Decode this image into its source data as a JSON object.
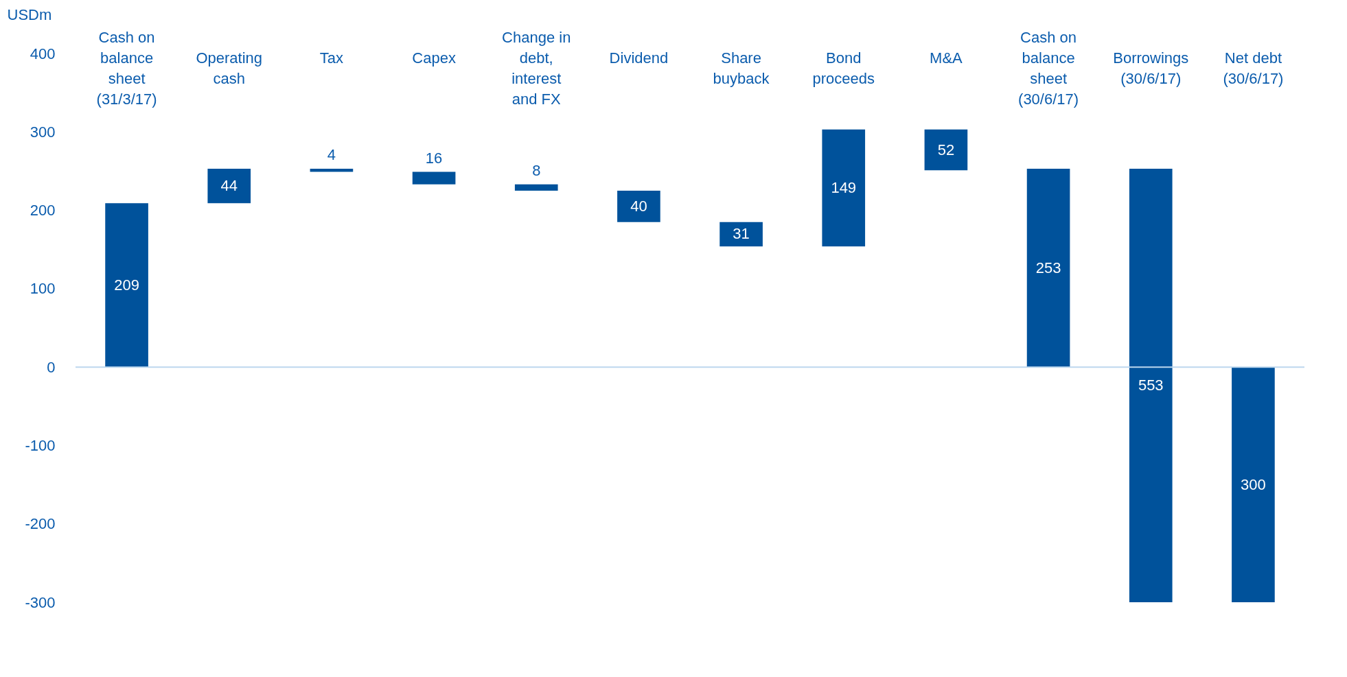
{
  "chart_data": {
    "type": "bar",
    "ylabel": "USDm",
    "categories": [
      "Cash on balance sheet (31/3/17)",
      "Operating cash",
      "Tax",
      "Capex",
      "Change in debt, interest and FX",
      "Dividend",
      "Share buyback",
      "Bond proceeds",
      "M&A",
      "Cash on balance sheet (30/6/17)",
      "Borrowings (30/6/17)",
      "Net debt (30/6/17)"
    ],
    "values": [
      209,
      44,
      -4,
      -16,
      -8,
      -40,
      -31,
      149,
      -52,
      253,
      -553,
      -300
    ],
    "base": [
      0,
      209,
      253,
      249,
      233,
      225,
      185,
      154,
      303,
      0,
      253,
      0
    ],
    "value_labels": [
      "209",
      "44",
      "4",
      "16",
      "8",
      "40",
      "31",
      "149",
      "52",
      "253",
      "553",
      "300"
    ],
    "color": "#00529b",
    "ylim": [
      -300,
      400
    ],
    "yticks": [
      -300,
      -200,
      -100,
      0,
      100,
      200,
      300,
      400
    ],
    "ref_lines": [
      {
        "axis": "y",
        "value": 0,
        "color": "#bdd7ee"
      }
    ],
    "grid": false
  }
}
